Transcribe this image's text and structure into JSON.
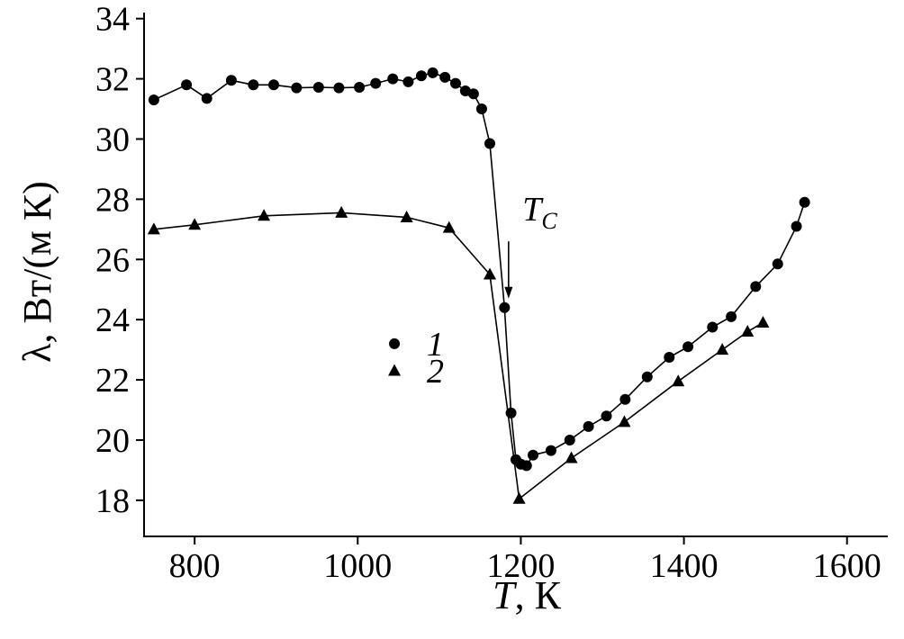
{
  "colors": {
    "background": "#ffffff",
    "foreground": "#000000"
  },
  "chart_data": {
    "type": "line",
    "title": "",
    "ylabel": "λ, Вт/(м К)",
    "xlabel_symbol": "T",
    "xlabel_rest": ", К",
    "xlim": [
      738,
      1650
    ],
    "ylim": [
      16.8,
      34.2
    ],
    "xticks": [
      800,
      1000,
      1200,
      1400,
      1600
    ],
    "yticks": [
      18,
      20,
      22,
      24,
      26,
      28,
      30,
      32,
      34
    ],
    "grid": false,
    "legend_position": "inside-left-center",
    "series": [
      {
        "name": "1",
        "marker": "circle",
        "color": "#000000",
        "points": [
          [
            750,
            31.3
          ],
          [
            790,
            31.8
          ],
          [
            815,
            31.35
          ],
          [
            845,
            31.95
          ],
          [
            872,
            31.8
          ],
          [
            897,
            31.8
          ],
          [
            925,
            31.7
          ],
          [
            952,
            31.72
          ],
          [
            977,
            31.7
          ],
          [
            1002,
            31.72
          ],
          [
            1022,
            31.85
          ],
          [
            1043,
            32.0
          ],
          [
            1062,
            31.9
          ],
          [
            1078,
            32.1
          ],
          [
            1092,
            32.2
          ],
          [
            1107,
            32.05
          ],
          [
            1120,
            31.85
          ],
          [
            1132,
            31.6
          ],
          [
            1142,
            31.5
          ],
          [
            1152,
            31.0
          ],
          [
            1162,
            29.85
          ],
          [
            1180,
            24.4
          ],
          [
            1188,
            20.9
          ],
          [
            1194,
            19.35
          ],
          [
            1200,
            19.2
          ],
          [
            1207,
            19.15
          ],
          [
            1215,
            19.5
          ],
          [
            1237,
            19.65
          ],
          [
            1260,
            20.0
          ],
          [
            1283,
            20.45
          ],
          [
            1305,
            20.8
          ],
          [
            1328,
            21.35
          ],
          [
            1355,
            22.1
          ],
          [
            1382,
            22.75
          ],
          [
            1405,
            23.1
          ],
          [
            1435,
            23.75
          ],
          [
            1458,
            24.1
          ],
          [
            1488,
            25.1
          ],
          [
            1515,
            25.85
          ],
          [
            1538,
            27.1
          ],
          [
            1548,
            27.9
          ]
        ]
      },
      {
        "name": "2",
        "marker": "triangle",
        "color": "#000000",
        "points": [
          [
            750,
            27.0
          ],
          [
            800,
            27.15
          ],
          [
            885,
            27.45
          ],
          [
            980,
            27.55
          ],
          [
            1060,
            27.4
          ],
          [
            1112,
            27.05
          ],
          [
            1162,
            25.5
          ],
          [
            1198,
            18.05
          ],
          [
            1262,
            19.4
          ],
          [
            1327,
            20.6
          ],
          [
            1393,
            21.95
          ],
          [
            1447,
            23.0
          ],
          [
            1478,
            23.6
          ],
          [
            1497,
            23.9
          ]
        ]
      }
    ],
    "legend": {
      "x": 1045,
      "y": [
        23.2,
        22.3
      ],
      "entries": [
        {
          "marker": "circle",
          "label": "1"
        },
        {
          "marker": "triangle",
          "label": "2"
        }
      ]
    },
    "annotation": {
      "symbol": "T",
      "subscript": "C",
      "label_x": 1202,
      "label_y": 27.3,
      "arrow_x": 1185,
      "arrow_y_from": 26.6,
      "arrow_y_to": 24.7
    }
  }
}
